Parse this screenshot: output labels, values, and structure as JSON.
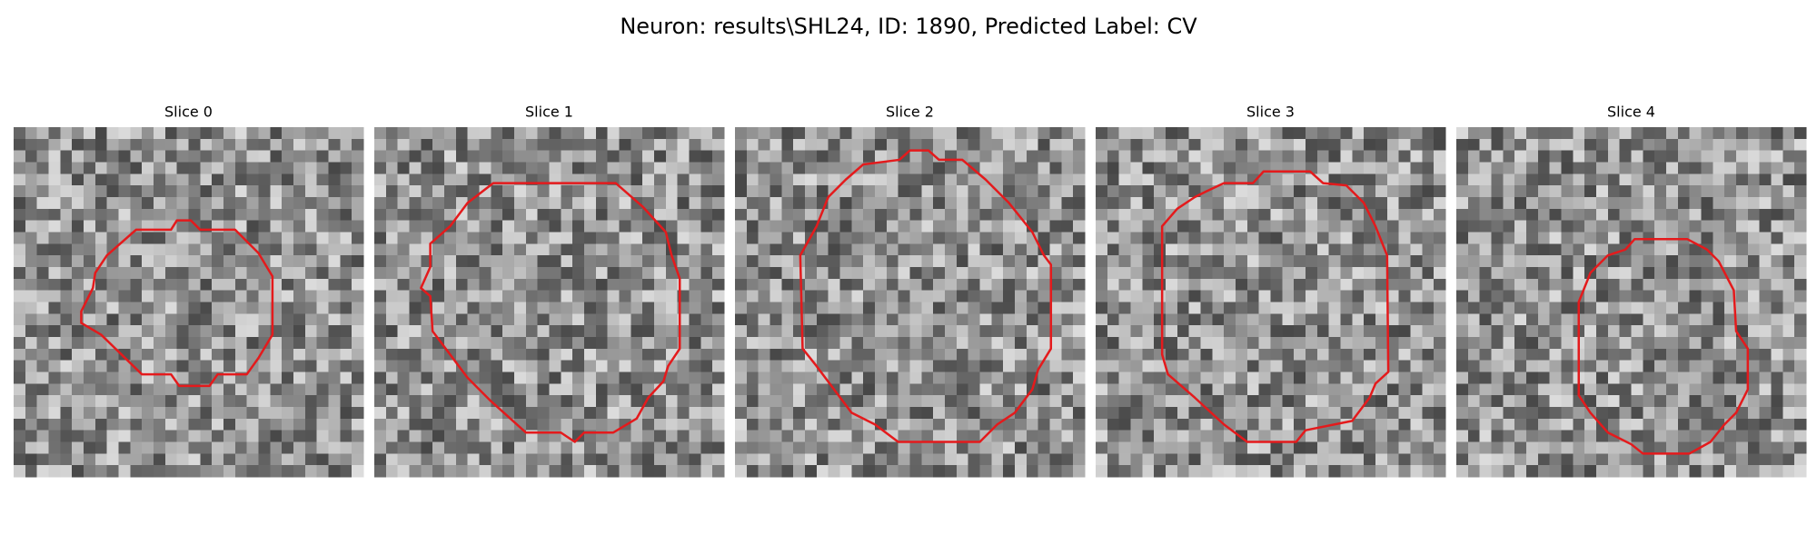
{
  "title": "Neuron: results\\SHL24, ID: 1890, Predicted Label: CV",
  "panels": [
    {
      "title": "Slice 0"
    },
    {
      "title": "Slice 1"
    },
    {
      "title": "Slice 2"
    },
    {
      "title": "Slice 3"
    },
    {
      "title": "Slice 4"
    }
  ]
}
